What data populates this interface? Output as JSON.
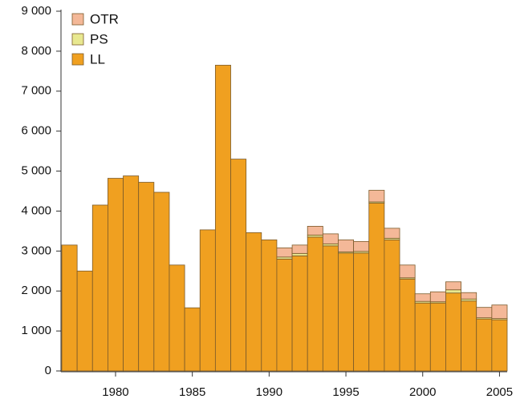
{
  "chart_data": {
    "type": "stacked-bar",
    "x": [
      1977,
      1978,
      1979,
      1980,
      1981,
      1982,
      1983,
      1984,
      1985,
      1986,
      1987,
      1988,
      1989,
      1990,
      1991,
      1992,
      1993,
      1994,
      1995,
      1996,
      1997,
      1998,
      1999,
      2000,
      2001,
      2002,
      2003,
      2004,
      2005
    ],
    "series": [
      {
        "name": "LL",
        "color": "#f0a020",
        "values": [
          3150,
          2500,
          4150,
          4820,
          4880,
          4720,
          4470,
          2650,
          1580,
          3530,
          7650,
          5300,
          3460,
          3280,
          2800,
          2880,
          3350,
          3130,
          2950,
          2950,
          4200,
          3280,
          2300,
          1700,
          1700,
          1950,
          1750,
          1300,
          1280
        ]
      },
      {
        "name": "PS",
        "color": "#e8e890",
        "values": [
          0,
          0,
          0,
          0,
          0,
          0,
          0,
          0,
          0,
          0,
          0,
          0,
          0,
          0,
          50,
          60,
          50,
          50,
          30,
          40,
          30,
          40,
          30,
          40,
          30,
          80,
          50,
          30,
          30
        ]
      },
      {
        "name": "OTR",
        "color": "#f4b898",
        "values": [
          0,
          0,
          0,
          0,
          0,
          0,
          0,
          0,
          0,
          0,
          0,
          0,
          0,
          0,
          230,
          210,
          220,
          250,
          300,
          250,
          290,
          250,
          320,
          190,
          250,
          200,
          160,
          260,
          340
        ]
      }
    ],
    "xlim": [
      1976.5,
      2005.5
    ],
    "xticks": [
      1980,
      1985,
      1990,
      1995,
      2000,
      2005
    ],
    "ylim": [
      0,
      9000
    ],
    "yticks": [
      0,
      {
        "value": 1000,
        "label": "1 000"
      },
      {
        "value": 2000,
        "label": "2 000"
      },
      {
        "value": 3000,
        "label": "3 000"
      },
      {
        "value": 4000,
        "label": "4 000"
      },
      {
        "value": 5000,
        "label": "5 000"
      },
      {
        "value": 6000,
        "label": "6 000"
      },
      {
        "value": 7000,
        "label": "7 000"
      },
      {
        "value": 8000,
        "label": "8 000"
      },
      {
        "value": 9000,
        "label": "9 000"
      }
    ],
    "legend": "top-left"
  }
}
